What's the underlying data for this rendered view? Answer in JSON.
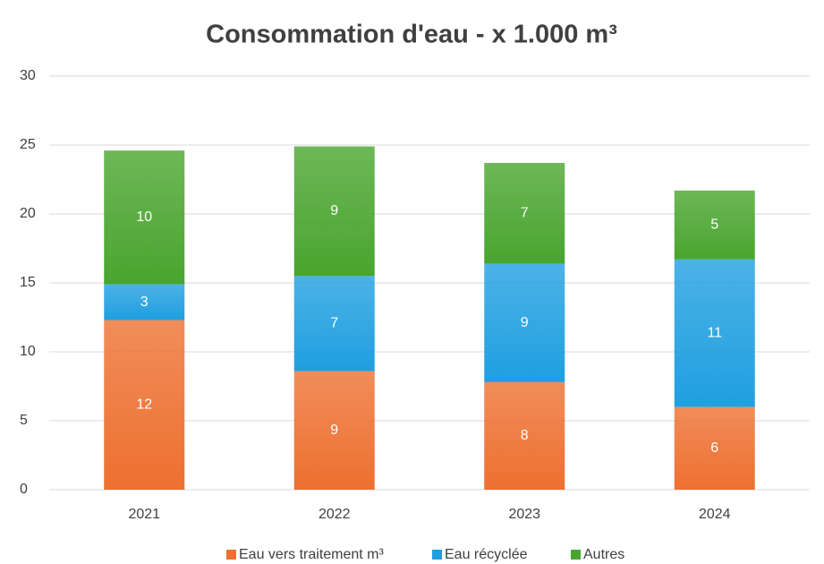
{
  "chart_data": {
    "type": "stacked_bar",
    "title": "Consommation d'eau - x 1.000 m³",
    "categories": [
      "2021",
      "2022",
      "2023",
      "2024"
    ],
    "series": [
      {
        "name": "Eau vers traitement m³",
        "color": "#ed7030",
        "values": [
          12.3,
          8.6,
          7.8,
          6.0
        ],
        "value_labels": [
          "12",
          "9",
          "8",
          "6"
        ]
      },
      {
        "name": "Eau récyclée",
        "color": "#1f9fe0",
        "values": [
          2.6,
          6.9,
          8.6,
          10.7
        ],
        "value_labels": [
          "3",
          "7",
          "9",
          "11"
        ]
      },
      {
        "name": "Autres",
        "color": "#49a52e",
        "values": [
          9.7,
          9.4,
          7.3,
          5.0
        ],
        "value_labels": [
          "10",
          "9",
          "7",
          "5"
        ]
      }
    ],
    "ylim": [
      0,
      30
    ],
    "yticks": [
      0,
      5,
      10,
      15,
      20,
      25,
      30
    ],
    "grid": true,
    "legend": "bottom"
  }
}
